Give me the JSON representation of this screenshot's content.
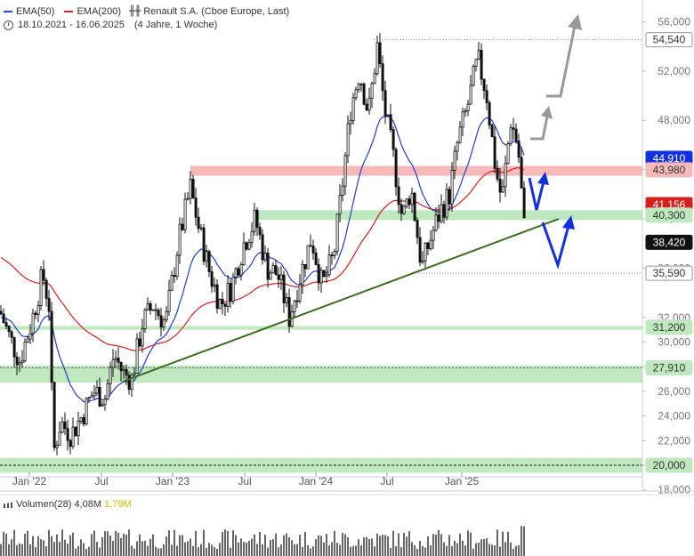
{
  "legend": {
    "ema50_label": "EMA(50)",
    "ema200_label": "EMA(200)",
    "instrument": "Renault S.A. (Cboe Europe, Last)",
    "date_range": "18.10.2021 - 16.06.2025",
    "period": "(4 Jahre, 1 Woche)"
  },
  "volume": {
    "label": "Volumen(28)",
    "value": "4,08M",
    "avg": "1,79M"
  },
  "chart_data": {
    "type": "candlestick",
    "x_tick_labels": [
      "Jan '22",
      "Jul",
      "Jan '23",
      "Jul",
      "Jan '24",
      "Jul",
      "Jan '25"
    ],
    "y_tick_labels": [
      "56,000",
      "52,000",
      "48,000",
      "44,000",
      "40,000",
      "36,000",
      "32,000",
      "30,000",
      "28,000",
      "26,000",
      "24,000",
      "22,000",
      "20,000",
      "18,000"
    ],
    "ylim": [
      18000,
      56000
    ],
    "price_markers": [
      {
        "value": "54,540",
        "style": "grey"
      },
      {
        "value": "44,910",
        "style": "blue"
      },
      {
        "value": "43,980",
        "style": "pink"
      },
      {
        "value": "41,156",
        "style": "red"
      },
      {
        "value": "40,300",
        "style": "green"
      },
      {
        "value": "38,420",
        "style": "black"
      },
      {
        "value": "35,590",
        "style": "grey"
      },
      {
        "value": "31,200",
        "style": "green"
      },
      {
        "value": "27,910",
        "style": "green"
      },
      {
        "value": "20,000",
        "style": "green"
      }
    ],
    "zones": [
      {
        "name": "resistance",
        "color": "#f6b9b9",
        "from": 43500,
        "to": 44300
      },
      {
        "name": "support",
        "color": "#bfe8bf",
        "from": 39900,
        "to": 40700
      },
      {
        "name": "support",
        "color": "#bfe8bf",
        "from": 31000,
        "to": 31300
      },
      {
        "name": "support",
        "color": "#bfe8bf",
        "from": 26700,
        "to": 28100
      },
      {
        "name": "support",
        "color": "#bfe8bf",
        "from": 19400,
        "to": 20600
      }
    ],
    "series": [
      {
        "name": "EMA(50)",
        "color": "#1f3fd6"
      },
      {
        "name": "EMA(200)",
        "color": "#d61f1f"
      },
      {
        "name": "Renault S.A. (Cboe Europe, Last)",
        "color": "#000000"
      }
    ]
  }
}
